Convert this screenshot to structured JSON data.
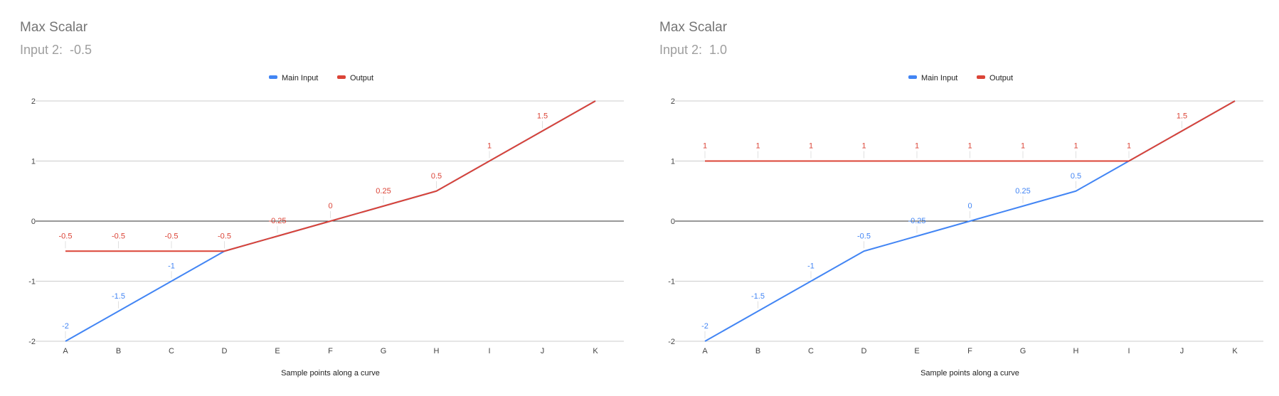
{
  "chart_data": [
    {
      "type": "line",
      "title": "Max Scalar",
      "subtitle": "Input 2:  -0.5",
      "xlabel": "Sample points along a curve",
      "ylabel": "",
      "categories": [
        "A",
        "B",
        "C",
        "D",
        "E",
        "F",
        "G",
        "H",
        "I",
        "J",
        "K"
      ],
      "ylim": [
        -2,
        2
      ],
      "yticks": [
        2,
        1,
        0,
        -1,
        -2
      ],
      "legend": "top-center",
      "grid": true,
      "series": [
        {
          "name": "Main Input",
          "color": "#4285f4",
          "values": [
            -2,
            -1.5,
            -1,
            -0.5,
            -0.25,
            0,
            0.25,
            0.5,
            1,
            1.5,
            2
          ]
        },
        {
          "name": "Output",
          "color": "#db4437",
          "values": [
            -0.5,
            -0.5,
            -0.5,
            -0.5,
            -0.25,
            0,
            0.25,
            0.5,
            1,
            1.5,
            2
          ]
        }
      ],
      "data_labels": [
        {
          "series": "Main Input",
          "items": [
            {
              "i": 0,
              "text": "-2"
            },
            {
              "i": 1,
              "text": "-1.5"
            },
            {
              "i": 2,
              "text": "-1"
            }
          ]
        },
        {
          "series": "Output",
          "items": [
            {
              "i": 0,
              "text": "-0.5"
            },
            {
              "i": 1,
              "text": "-0.5"
            },
            {
              "i": 2,
              "text": "-0.5"
            },
            {
              "i": 3,
              "text": "-0.5"
            },
            {
              "i": 4,
              "text": "-0.25"
            },
            {
              "i": 5,
              "text": "0"
            },
            {
              "i": 6,
              "text": "0.25"
            },
            {
              "i": 7,
              "text": "0.5"
            },
            {
              "i": 8,
              "text": "1"
            },
            {
              "i": 9,
              "text": "1.5"
            }
          ]
        }
      ]
    },
    {
      "type": "line",
      "title": "Max Scalar",
      "subtitle": "Input 2:  1.0",
      "xlabel": "Sample points along a curve",
      "ylabel": "",
      "categories": [
        "A",
        "B",
        "C",
        "D",
        "E",
        "F",
        "G",
        "H",
        "I",
        "J",
        "K"
      ],
      "ylim": [
        -2,
        2
      ],
      "yticks": [
        2,
        1,
        0,
        -1,
        -2
      ],
      "legend": "top-center",
      "grid": true,
      "series": [
        {
          "name": "Main Input",
          "color": "#4285f4",
          "values": [
            -2,
            -1.5,
            -1,
            -0.5,
            -0.25,
            0,
            0.25,
            0.5,
            1,
            1.5,
            2
          ]
        },
        {
          "name": "Output",
          "color": "#db4437",
          "values": [
            1,
            1,
            1,
            1,
            1,
            1,
            1,
            1,
            1,
            1.5,
            2
          ]
        }
      ],
      "data_labels": [
        {
          "series": "Main Input",
          "items": [
            {
              "i": 0,
              "text": "-2"
            },
            {
              "i": 1,
              "text": "-1.5"
            },
            {
              "i": 2,
              "text": "-1"
            },
            {
              "i": 3,
              "text": "-0.5"
            },
            {
              "i": 4,
              "text": "-0.25"
            },
            {
              "i": 5,
              "text": "0"
            },
            {
              "i": 6,
              "text": "0.25"
            },
            {
              "i": 7,
              "text": "0.5"
            }
          ]
        },
        {
          "series": "Output",
          "items": [
            {
              "i": 0,
              "text": "1"
            },
            {
              "i": 1,
              "text": "1"
            },
            {
              "i": 2,
              "text": "1"
            },
            {
              "i": 3,
              "text": "1"
            },
            {
              "i": 4,
              "text": "1"
            },
            {
              "i": 5,
              "text": "1"
            },
            {
              "i": 6,
              "text": "1"
            },
            {
              "i": 7,
              "text": "1"
            },
            {
              "i": 8,
              "text": "1"
            },
            {
              "i": 9,
              "text": "1.5"
            }
          ]
        }
      ]
    }
  ]
}
